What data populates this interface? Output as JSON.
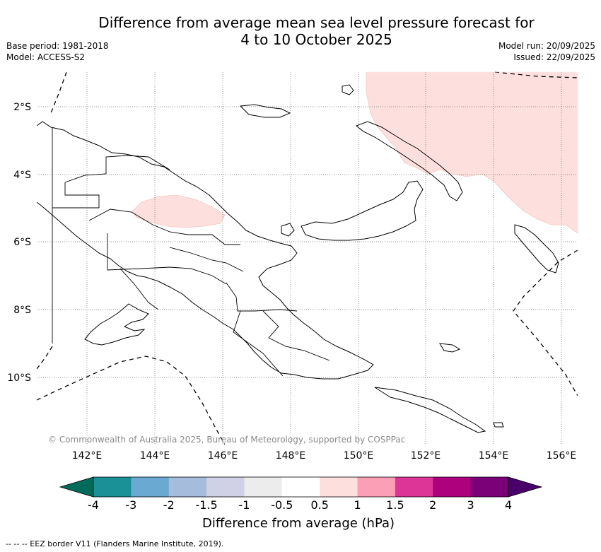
{
  "title": {
    "line1": "Difference from average mean sea level pressure forecast for",
    "line2": "4 to 10 October 2025"
  },
  "meta_left": {
    "base_period": "Base period: 1981-2018",
    "model": "Model: ACCESS-S2"
  },
  "meta_right": {
    "model_run": "Model run: 20/09/2025",
    "issued": "Issued: 22/09/2025"
  },
  "map": {
    "lat_labels": [
      "2°S",
      "4°S",
      "6°S",
      "8°S",
      "10°S"
    ],
    "lon_labels": [
      "142°E",
      "144°E",
      "146°E",
      "148°E",
      "150°E",
      "152°E",
      "154°E",
      "156°E"
    ],
    "copyright": "© Commonwealth of Australia 2025, Bureau of Meteorology, supported by COSPPac",
    "anomaly_fill_color": "#fde0de",
    "ocean_color": "#ffffff"
  },
  "colorbar": {
    "title": "Difference from average (hPa)",
    "tick_labels": [
      "-4",
      "-3",
      "-2",
      "-1.5",
      "-1",
      "-0.5",
      "0.5",
      "1",
      "1.5",
      "2",
      "3",
      "4"
    ],
    "colors": [
      "#006b5b",
      "#1a9097",
      "#6aa9d2",
      "#a6bcdc",
      "#d0d1e6",
      "#ececec",
      "#ffffff",
      "#fde0de",
      "#fa9fb5",
      "#dd3497",
      "#ae017e",
      "#7a0177",
      "#49006a"
    ]
  },
  "footer": {
    "eez_note": "--  --  -- EEZ border V11 (Flanders Marine Institute, 2019)."
  }
}
